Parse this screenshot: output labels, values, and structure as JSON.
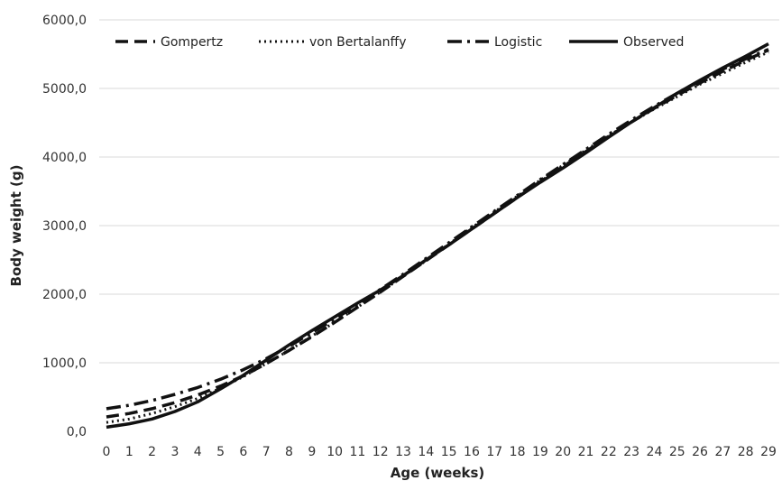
{
  "chart_data": {
    "type": "line",
    "xlabel": "Age (weeks)",
    "ylabel": "Body weight (g)",
    "x": [
      0,
      1,
      2,
      3,
      4,
      5,
      6,
      7,
      8,
      9,
      10,
      11,
      12,
      13,
      14,
      15,
      16,
      17,
      18,
      19,
      20,
      21,
      22,
      23,
      24,
      25,
      26,
      27,
      28,
      29
    ],
    "xlim": [
      0,
      29
    ],
    "ylim": [
      0,
      6000
    ],
    "yticks": [
      0,
      1000,
      2000,
      3000,
      4000,
      5000,
      6000
    ],
    "ytick_labels": [
      "0,0",
      "1000,0",
      "2000,0",
      "3000,0",
      "4000,0",
      "5000,0",
      "6000,0"
    ],
    "xtick_labels": [
      "0",
      "1",
      "2",
      "3",
      "4",
      "5",
      "6",
      "7",
      "8",
      "9",
      "10",
      "11",
      "12",
      "13",
      "14",
      "15",
      "16",
      "17",
      "18",
      "19",
      "20",
      "21",
      "22",
      "23",
      "24",
      "25",
      "26",
      "27",
      "28",
      "29"
    ],
    "grid": "horizontal",
    "legend_position": "top",
    "series": [
      {
        "name": "Gompertz",
        "style": "dashed",
        "values": [
          210,
          260,
          330,
          420,
          530,
          660,
          810,
          990,
          1180,
          1380,
          1590,
          1810,
          2030,
          2260,
          2490,
          2720,
          2950,
          3180,
          3410,
          3640,
          3860,
          4080,
          4300,
          4510,
          4710,
          4900,
          5080,
          5250,
          5410,
          5560
        ]
      },
      {
        "name": "von Bertalanffy",
        "style": "dotted",
        "values": [
          130,
          180,
          260,
          360,
          480,
          630,
          800,
          990,
          1180,
          1390,
          1590,
          1810,
          2030,
          2260,
          2490,
          2730,
          2970,
          3200,
          3430,
          3660,
          3880,
          4100,
          4310,
          4510,
          4700,
          4880,
          5060,
          5220,
          5380,
          5530
        ]
      },
      {
        "name": "Logistic",
        "style": "dash-dot",
        "values": [
          330,
          380,
          450,
          540,
          640,
          760,
          900,
          1060,
          1240,
          1440,
          1640,
          1850,
          2070,
          2290,
          2520,
          2750,
          2980,
          3210,
          3440,
          3670,
          3890,
          4110,
          4330,
          4540,
          4740,
          4930,
          5110,
          5280,
          5430,
          5570
        ]
      },
      {
        "name": "Observed",
        "style": "solid",
        "values": [
          60,
          110,
          180,
          290,
          430,
          620,
          820,
          1040,
          1260,
          1470,
          1670,
          1870,
          2060,
          2270,
          2500,
          2720,
          2950,
          3180,
          3410,
          3630,
          3840,
          4060,
          4290,
          4510,
          4720,
          4930,
          5120,
          5300,
          5470,
          5650
        ]
      }
    ]
  }
}
